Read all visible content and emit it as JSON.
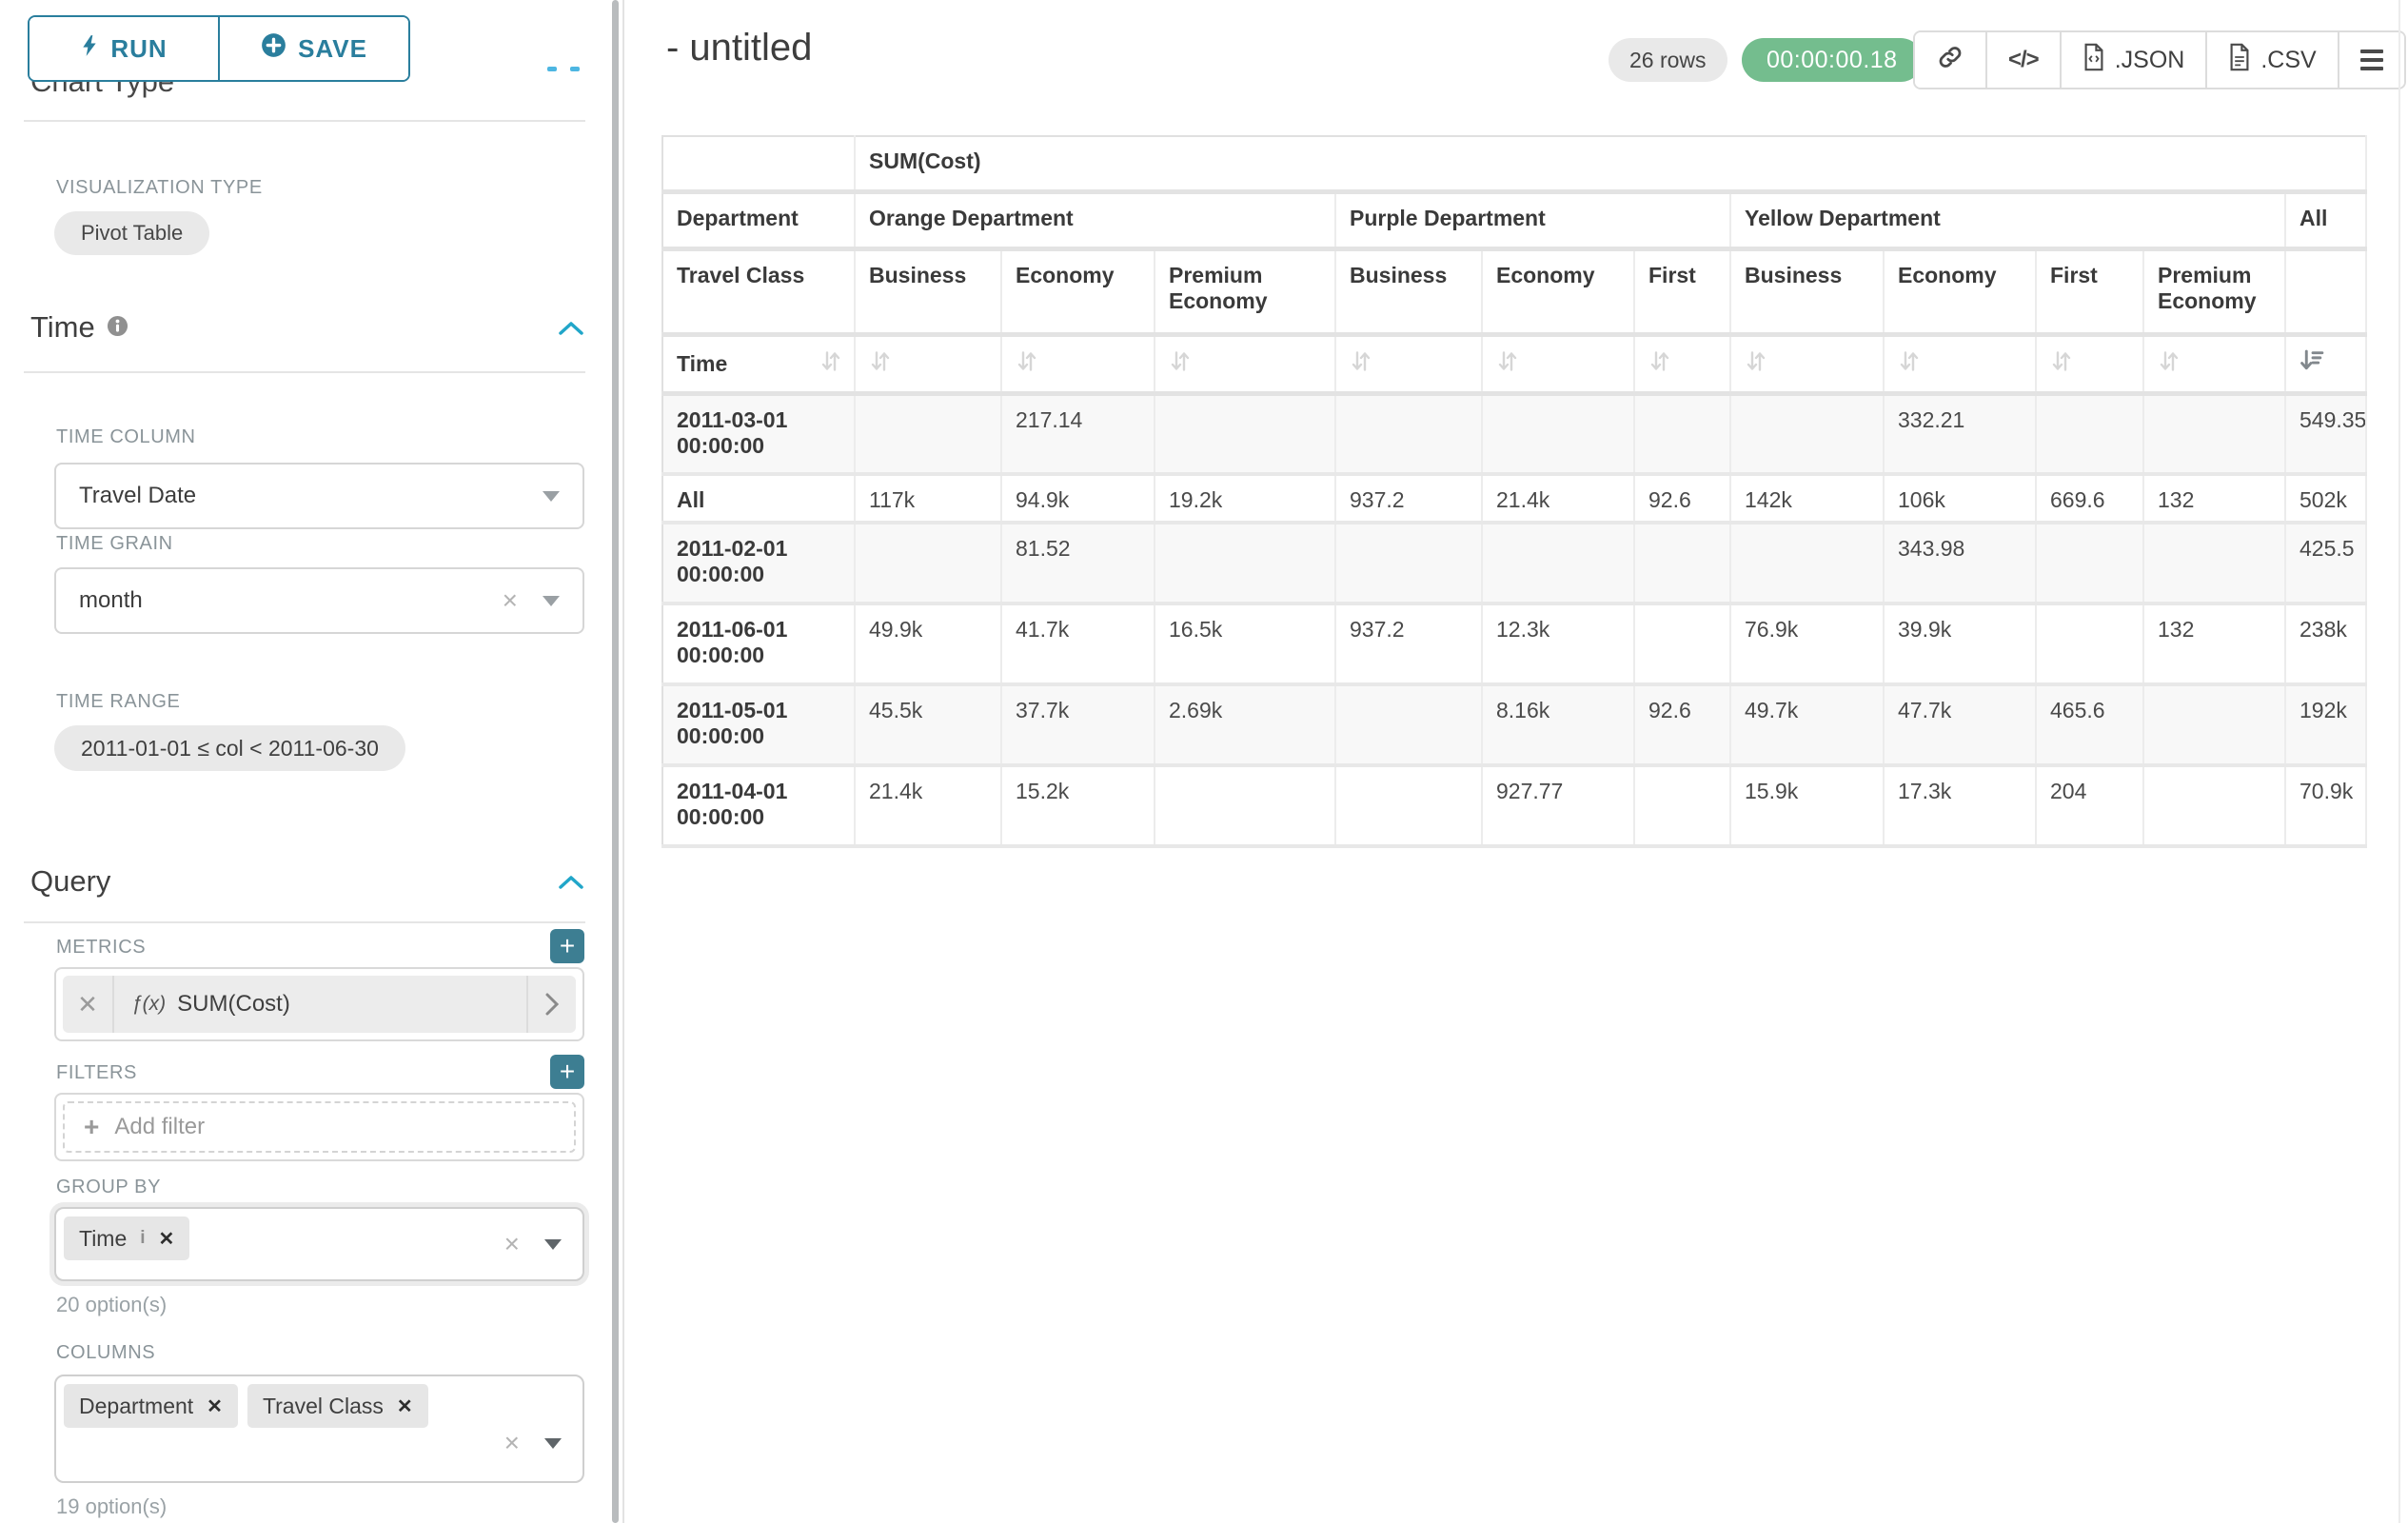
{
  "colors": {
    "accent": "#2a7e9d",
    "section_chevron": "#21a6c9",
    "timer_green": "#74bd8e",
    "plus_button": "#3d7e92"
  },
  "left_panel": {
    "run_label": "RUN",
    "save_label": "SAVE",
    "chart_type_heading": "Chart Type",
    "viz_label": "VISUALIZATION TYPE",
    "viz_value": "Pivot Table",
    "time": {
      "title": "Time",
      "time_column_label": "TIME COLUMN",
      "time_column_value": "Travel Date",
      "time_grain_label": "TIME GRAIN",
      "time_grain_value": "month",
      "time_range_label": "TIME RANGE",
      "time_range_value": "2011-01-01 ≤ col < 2011-06-30"
    },
    "query": {
      "title": "Query",
      "metrics_label": "METRICS",
      "metric_fx": "ƒ(x)",
      "metric_value": "SUM(Cost)",
      "filters_label": "FILTERS",
      "add_filter_label": "Add filter",
      "group_by_label": "GROUP BY",
      "group_by_chip": "Time",
      "group_by_options": "20 option(s)",
      "columns_label": "COLUMNS",
      "columns_chips": [
        "Department",
        "Travel Class"
      ],
      "columns_options": "19 option(s)"
    }
  },
  "header": {
    "title": "- untitled",
    "rows_badge": "26 rows",
    "timer": "00:00:00.18",
    "json_label": ".JSON",
    "csv_label": ".CSV"
  },
  "chart_data": {
    "type": "table",
    "title": "SUM(Cost)",
    "corner_labels": {
      "department": "Department",
      "travel_class": "Travel Class",
      "time": "Time"
    },
    "column_groups": [
      {
        "label": "Orange Department",
        "columns": [
          "Business",
          "Economy",
          "Premium Economy"
        ]
      },
      {
        "label": "Purple Department",
        "columns": [
          "Business",
          "Economy",
          "First"
        ]
      },
      {
        "label": "Yellow Department",
        "columns": [
          "Business",
          "Economy",
          "First",
          "Premium Economy"
        ]
      },
      {
        "label": "All",
        "columns": [
          ""
        ]
      }
    ],
    "rows": [
      {
        "label": "2011-03-01 00:00:00",
        "values": [
          "",
          "217.14",
          "",
          "",
          "",
          "",
          "",
          "332.21",
          "",
          "",
          "549.35"
        ]
      },
      {
        "label": "All",
        "values": [
          "117k",
          "94.9k",
          "19.2k",
          "937.2",
          "21.4k",
          "92.6",
          "142k",
          "106k",
          "669.6",
          "132",
          "502k"
        ]
      },
      {
        "label": "2011-02-01 00:00:00",
        "values": [
          "",
          "81.52",
          "",
          "",
          "",
          "",
          "",
          "343.98",
          "",
          "",
          "425.5"
        ]
      },
      {
        "label": "2011-06-01 00:00:00",
        "values": [
          "49.9k",
          "41.7k",
          "16.5k",
          "937.2",
          "12.3k",
          "",
          "76.9k",
          "39.9k",
          "",
          "132",
          "238k"
        ]
      },
      {
        "label": "2011-05-01 00:00:00",
        "values": [
          "45.5k",
          "37.7k",
          "2.69k",
          "",
          "8.16k",
          "92.6",
          "49.7k",
          "47.7k",
          "465.6",
          "",
          "192k"
        ]
      },
      {
        "label": "2011-04-01 00:00:00",
        "values": [
          "21.4k",
          "15.2k",
          "",
          "",
          "927.77",
          "",
          "15.9k",
          "17.3k",
          "204",
          "",
          "70.9k"
        ]
      }
    ],
    "sort": {
      "active_column": "All",
      "direction": "desc"
    }
  }
}
